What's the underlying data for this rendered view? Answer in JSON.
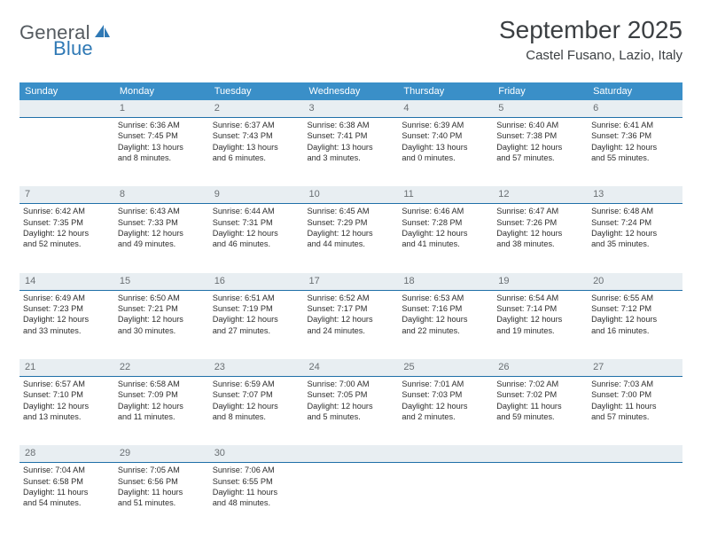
{
  "logo": {
    "word1": "General",
    "word2": "Blue",
    "word1_color": "#5b6167",
    "word2_color": "#2f79b5",
    "shape_color": "#2f79b5"
  },
  "title": "September 2025",
  "location": "Castel Fusano, Lazio, Italy",
  "header_bg": "#3a8fc8",
  "daynum_bg": "#e8eef2",
  "daynum_border": "#1f6fa8",
  "weekdays": [
    "Sunday",
    "Monday",
    "Tuesday",
    "Wednesday",
    "Thursday",
    "Friday",
    "Saturday"
  ],
  "weeks": [
    {
      "nums": [
        "",
        "1",
        "2",
        "3",
        "4",
        "5",
        "6"
      ],
      "cells": [
        [],
        [
          "Sunrise: 6:36 AM",
          "Sunset: 7:45 PM",
          "Daylight: 13 hours",
          "and 8 minutes."
        ],
        [
          "Sunrise: 6:37 AM",
          "Sunset: 7:43 PM",
          "Daylight: 13 hours",
          "and 6 minutes."
        ],
        [
          "Sunrise: 6:38 AM",
          "Sunset: 7:41 PM",
          "Daylight: 13 hours",
          "and 3 minutes."
        ],
        [
          "Sunrise: 6:39 AM",
          "Sunset: 7:40 PM",
          "Daylight: 13 hours",
          "and 0 minutes."
        ],
        [
          "Sunrise: 6:40 AM",
          "Sunset: 7:38 PM",
          "Daylight: 12 hours",
          "and 57 minutes."
        ],
        [
          "Sunrise: 6:41 AM",
          "Sunset: 7:36 PM",
          "Daylight: 12 hours",
          "and 55 minutes."
        ]
      ]
    },
    {
      "nums": [
        "7",
        "8",
        "9",
        "10",
        "11",
        "12",
        "13"
      ],
      "cells": [
        [
          "Sunrise: 6:42 AM",
          "Sunset: 7:35 PM",
          "Daylight: 12 hours",
          "and 52 minutes."
        ],
        [
          "Sunrise: 6:43 AM",
          "Sunset: 7:33 PM",
          "Daylight: 12 hours",
          "and 49 minutes."
        ],
        [
          "Sunrise: 6:44 AM",
          "Sunset: 7:31 PM",
          "Daylight: 12 hours",
          "and 46 minutes."
        ],
        [
          "Sunrise: 6:45 AM",
          "Sunset: 7:29 PM",
          "Daylight: 12 hours",
          "and 44 minutes."
        ],
        [
          "Sunrise: 6:46 AM",
          "Sunset: 7:28 PM",
          "Daylight: 12 hours",
          "and 41 minutes."
        ],
        [
          "Sunrise: 6:47 AM",
          "Sunset: 7:26 PM",
          "Daylight: 12 hours",
          "and 38 minutes."
        ],
        [
          "Sunrise: 6:48 AM",
          "Sunset: 7:24 PM",
          "Daylight: 12 hours",
          "and 35 minutes."
        ]
      ]
    },
    {
      "nums": [
        "14",
        "15",
        "16",
        "17",
        "18",
        "19",
        "20"
      ],
      "cells": [
        [
          "Sunrise: 6:49 AM",
          "Sunset: 7:23 PM",
          "Daylight: 12 hours",
          "and 33 minutes."
        ],
        [
          "Sunrise: 6:50 AM",
          "Sunset: 7:21 PM",
          "Daylight: 12 hours",
          "and 30 minutes."
        ],
        [
          "Sunrise: 6:51 AM",
          "Sunset: 7:19 PM",
          "Daylight: 12 hours",
          "and 27 minutes."
        ],
        [
          "Sunrise: 6:52 AM",
          "Sunset: 7:17 PM",
          "Daylight: 12 hours",
          "and 24 minutes."
        ],
        [
          "Sunrise: 6:53 AM",
          "Sunset: 7:16 PM",
          "Daylight: 12 hours",
          "and 22 minutes."
        ],
        [
          "Sunrise: 6:54 AM",
          "Sunset: 7:14 PM",
          "Daylight: 12 hours",
          "and 19 minutes."
        ],
        [
          "Sunrise: 6:55 AM",
          "Sunset: 7:12 PM",
          "Daylight: 12 hours",
          "and 16 minutes."
        ]
      ]
    },
    {
      "nums": [
        "21",
        "22",
        "23",
        "24",
        "25",
        "26",
        "27"
      ],
      "cells": [
        [
          "Sunrise: 6:57 AM",
          "Sunset: 7:10 PM",
          "Daylight: 12 hours",
          "and 13 minutes."
        ],
        [
          "Sunrise: 6:58 AM",
          "Sunset: 7:09 PM",
          "Daylight: 12 hours",
          "and 11 minutes."
        ],
        [
          "Sunrise: 6:59 AM",
          "Sunset: 7:07 PM",
          "Daylight: 12 hours",
          "and 8 minutes."
        ],
        [
          "Sunrise: 7:00 AM",
          "Sunset: 7:05 PM",
          "Daylight: 12 hours",
          "and 5 minutes."
        ],
        [
          "Sunrise: 7:01 AM",
          "Sunset: 7:03 PM",
          "Daylight: 12 hours",
          "and 2 minutes."
        ],
        [
          "Sunrise: 7:02 AM",
          "Sunset: 7:02 PM",
          "Daylight: 11 hours",
          "and 59 minutes."
        ],
        [
          "Sunrise: 7:03 AM",
          "Sunset: 7:00 PM",
          "Daylight: 11 hours",
          "and 57 minutes."
        ]
      ]
    },
    {
      "nums": [
        "28",
        "29",
        "30",
        "",
        "",
        "",
        ""
      ],
      "cells": [
        [
          "Sunrise: 7:04 AM",
          "Sunset: 6:58 PM",
          "Daylight: 11 hours",
          "and 54 minutes."
        ],
        [
          "Sunrise: 7:05 AM",
          "Sunset: 6:56 PM",
          "Daylight: 11 hours",
          "and 51 minutes."
        ],
        [
          "Sunrise: 7:06 AM",
          "Sunset: 6:55 PM",
          "Daylight: 11 hours",
          "and 48 minutes."
        ],
        [],
        [],
        [],
        []
      ]
    }
  ]
}
